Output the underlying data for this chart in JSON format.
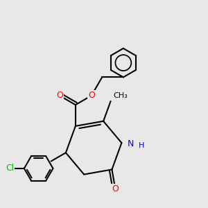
{
  "background_color": "#e8e8e8",
  "bond_color": "#000000",
  "bond_width": 1.5,
  "atom_colors": {
    "O": "#ff0000",
    "N": "#0000cd",
    "Cl": "#00bb00",
    "C": "#000000"
  },
  "font_size": 9,
  "figsize": [
    3.0,
    3.0
  ],
  "dpi": 100
}
